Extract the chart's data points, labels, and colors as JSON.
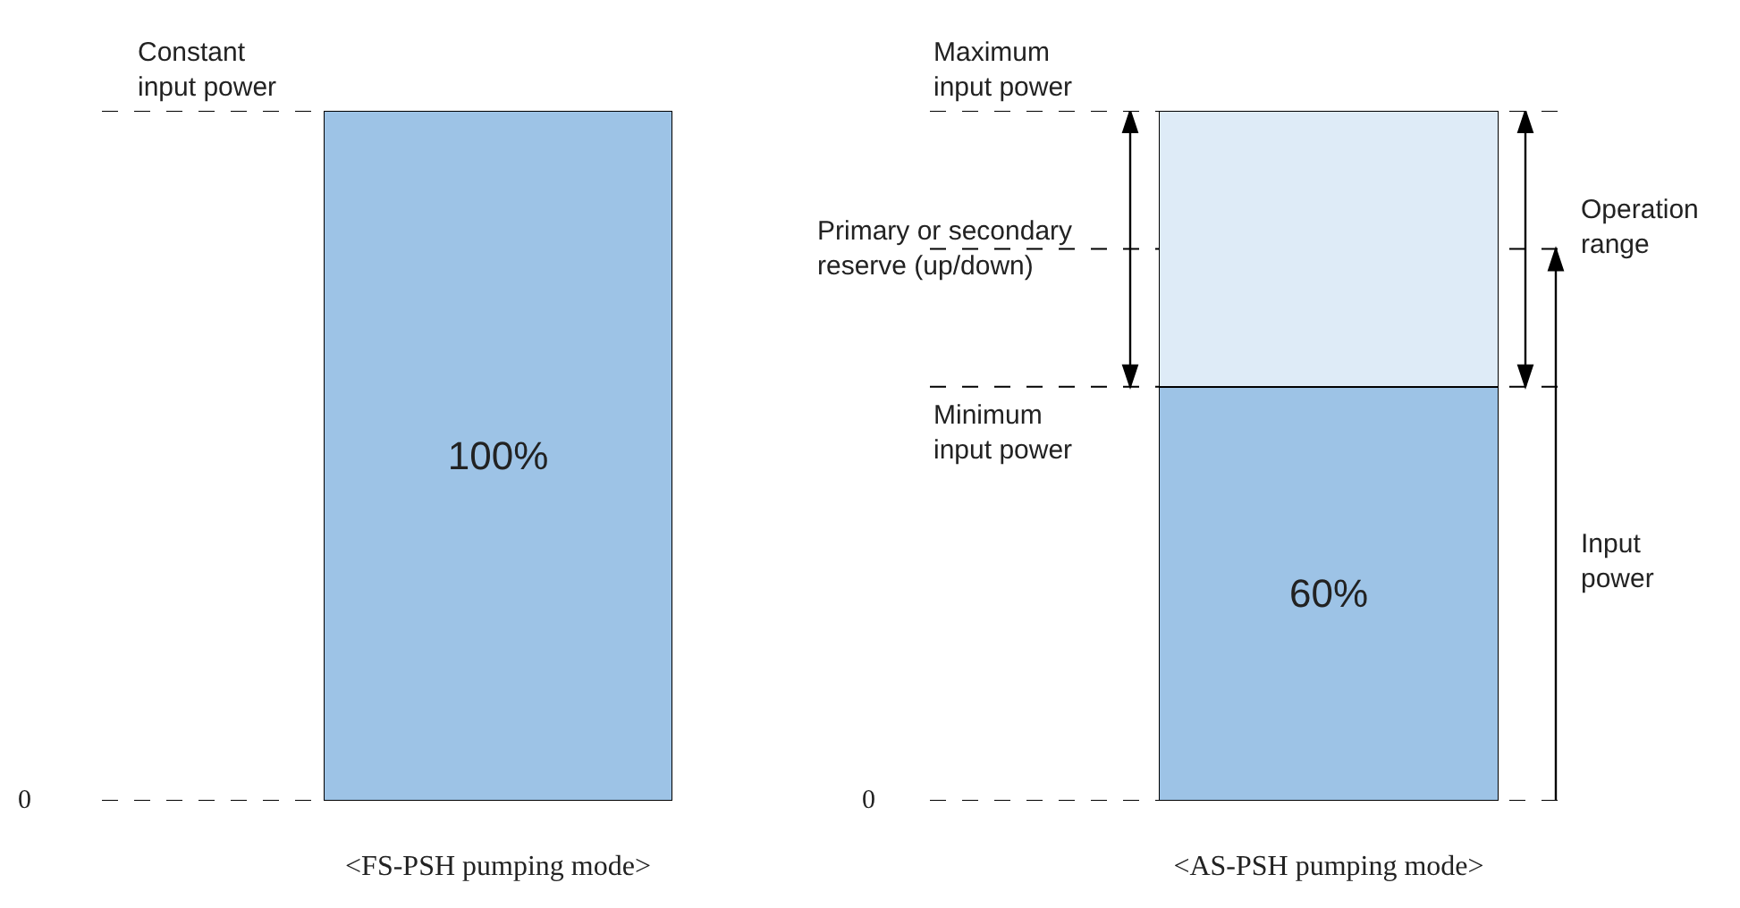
{
  "chart_data": [
    {
      "type": "bar",
      "xlabel": "<FS-PSH pumping mode>",
      "categories": [
        null
      ],
      "values": [
        100
      ],
      "color": "#9dc3e6",
      "value_labels": [
        "100%"
      ],
      "ref_lines": [
        {
          "axis": "y",
          "value": 100,
          "label": "Constant input power",
          "line_style": "dashed"
        },
        {
          "axis": "y",
          "value": 0,
          "line_style": "dashed"
        }
      ],
      "annotations": [
        "0"
      ]
    },
    {
      "type": "bar",
      "stacked": true,
      "xlabel": "<AS-PSH pumping mode>",
      "categories": [
        null
      ],
      "series": [
        {
          "color": "#9dc3e6",
          "values": [
            60
          ],
          "value_labels": [
            "60%"
          ]
        },
        {
          "color": "#deebf7",
          "values": [
            40
          ],
          "value_labels": [
            null
          ]
        }
      ],
      "ref_lines": [
        {
          "axis": "y",
          "value": 100,
          "label": "Maximum input power",
          "line_style": "dashed"
        },
        {
          "axis": "y",
          "value": 80,
          "line_style": "dashed"
        },
        {
          "axis": "y",
          "value": 60,
          "label": "Minimum input power",
          "line_style": "dashed"
        },
        {
          "axis": "y",
          "value": 0,
          "line_style": "dashed"
        }
      ],
      "annotations": [
        {
          "text": "Primary or secondary reserve (up/down)",
          "y": 80
        },
        "Operation range",
        "Input power",
        "0"
      ]
    }
  ]
}
